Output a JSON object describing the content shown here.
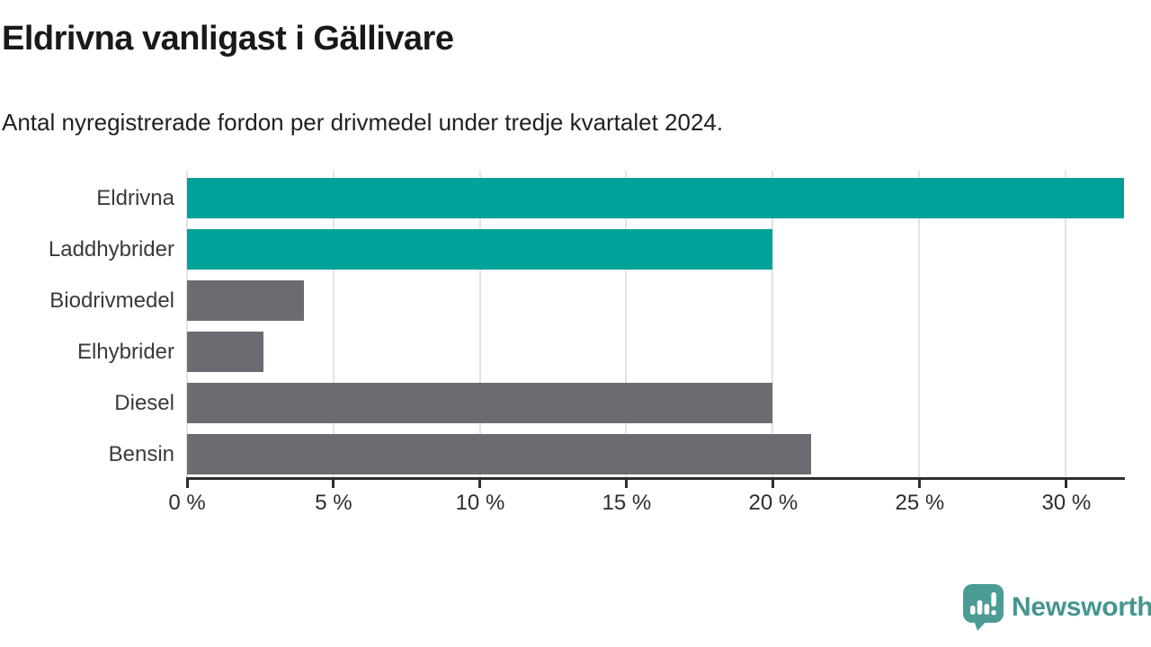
{
  "header": {
    "title": "Eldrivna vanligast i Gällivare",
    "subtitle": "Antal nyregistrerade fordon per drivmedel under tredje kvartalet 2024."
  },
  "chart_data": {
    "type": "bar",
    "orientation": "horizontal",
    "categories": [
      "Eldrivna",
      "Laddhybrider",
      "Biodrivmedel",
      "Elhybrider",
      "Diesel",
      "Bensin"
    ],
    "values": [
      32,
      20,
      4,
      2.6,
      20,
      21.3
    ],
    "unit": "%",
    "xlim": [
      0,
      32
    ],
    "xticks": [
      0,
      5,
      10,
      15,
      20,
      25,
      30
    ],
    "xtick_labels": [
      "0 %",
      "5 %",
      "10 %",
      "15 %",
      "20 %",
      "25 %",
      "30 %"
    ],
    "bar_colors": [
      "#00a29a",
      "#00a29a",
      "#6c6b71",
      "#6c6b71",
      "#6c6b71",
      "#6c6b71"
    ],
    "highlight_color": "#00a29a",
    "default_color": "#6c6b71",
    "gridline_color": "#e3e3e3",
    "axis_color": "#2e2e2e",
    "grid": true,
    "legend": "none"
  },
  "footer": {
    "brand": "Newsworthy",
    "brand_color": "#459590",
    "brand_icon": "speech-bubble-bar-chart-icon",
    "brand_icon_color": "#4c9c96"
  }
}
